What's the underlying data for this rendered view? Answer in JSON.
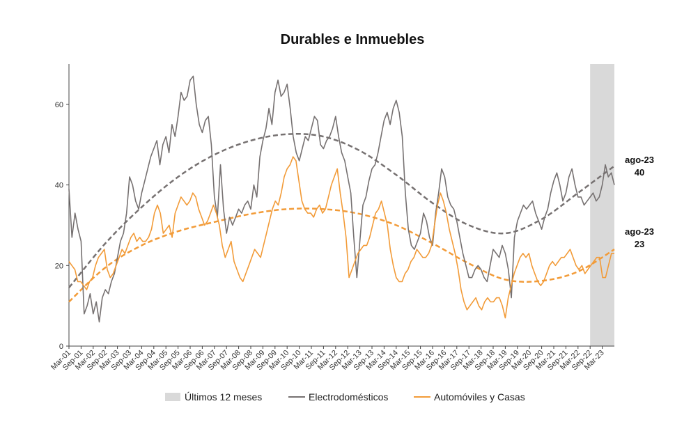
{
  "chart_data": {
    "type": "line",
    "title": "Durables e Inmuebles",
    "xlabel": "",
    "ylabel": "",
    "ylim": [
      0,
      70
    ],
    "yticks": [
      0,
      20,
      40,
      60
    ],
    "x_labels": [
      "Mar-01",
      "Sep-01",
      "Mar-02",
      "Sep-02",
      "Mar-03",
      "Sep-03",
      "Mar-04",
      "Sep-04",
      "Mar-05",
      "Sep-05",
      "Mar-06",
      "Sep-06",
      "Mar-07",
      "Sep-07",
      "Mar-08",
      "Sep-08",
      "Mar-09",
      "Sep-09",
      "Mar-10",
      "Sep-10",
      "Mar-11",
      "Sep-11",
      "Mar-12",
      "Sep-12",
      "Mar-13",
      "Sep-13",
      "Mar-14",
      "Sep-14",
      "Mar-15",
      "Sep-15",
      "Mar-16",
      "Sep-16",
      "Mar-17",
      "Sep-17",
      "Mar-18",
      "Sep-18",
      "Mar-19",
      "Sep-19",
      "Mar-20",
      "Sep-20",
      "Mar-21",
      "Sep-21",
      "Mar-22",
      "Sep-22",
      "Mar-23"
    ],
    "x_start": "Mar-01",
    "x_end": "ago-23",
    "shaded_region": {
      "label": "Últimos 12 meses",
      "from": "Sep-22",
      "to": "ago-23",
      "color": "#d9d9d9"
    },
    "series": [
      {
        "name": "Electrodomésticos",
        "color": "#767171",
        "values": [
          39,
          27,
          33,
          29,
          26,
          8,
          10,
          13,
          8,
          11,
          6,
          12,
          14,
          13,
          16,
          18,
          22,
          26,
          28,
          33,
          42,
          40,
          36,
          34,
          38,
          41,
          44,
          47,
          49,
          51,
          45,
          50,
          52,
          48,
          55,
          52,
          57,
          63,
          61,
          62,
          66,
          67,
          60,
          55,
          53,
          56,
          57,
          50,
          37,
          32,
          45,
          34,
          28,
          32,
          30,
          32,
          34,
          33,
          35,
          36,
          34,
          40,
          37,
          47,
          51,
          54,
          59,
          55,
          63,
          66,
          62,
          63,
          65,
          59,
          52,
          48,
          46,
          49,
          52,
          51,
          54,
          57,
          56,
          50,
          49,
          51,
          52,
          54,
          57,
          52,
          48,
          46,
          42,
          38,
          27,
          17,
          26,
          35,
          37,
          41,
          44,
          45,
          48,
          52,
          56,
          58,
          55,
          59,
          61,
          58,
          52,
          38,
          29,
          25,
          24,
          26,
          28,
          33,
          31,
          27,
          25,
          33,
          38,
          44,
          42,
          37,
          35,
          34,
          31,
          27,
          23,
          20,
          17,
          17,
          19,
          20,
          19,
          17,
          16,
          20,
          24,
          23,
          22,
          25,
          23,
          19,
          12,
          27,
          31,
          33,
          35,
          34,
          35,
          36,
          33,
          31,
          29,
          32,
          34,
          38,
          41,
          43,
          40,
          36,
          38,
          42,
          44,
          40,
          37,
          37,
          35,
          36,
          37,
          38,
          36,
          37,
          40,
          45,
          42,
          43,
          40
        ],
        "trend": {
          "label": "ago-23",
          "value": "40"
        }
      },
      {
        "name": "Automóviles y Casas",
        "color": "#f29b38",
        "values": [
          21,
          20,
          19,
          16,
          16,
          15,
          14,
          16,
          17,
          20,
          22,
          23,
          24,
          19,
          17,
          18,
          20,
          22,
          24,
          23,
          25,
          27,
          28,
          26,
          27,
          26,
          26,
          27,
          29,
          33,
          35,
          33,
          28,
          29,
          30,
          27,
          33,
          35,
          37,
          36,
          35,
          36,
          38,
          37,
          34,
          32,
          30,
          31,
          33,
          35,
          33,
          30,
          25,
          22,
          24,
          26,
          21,
          19,
          17,
          16,
          18,
          20,
          22,
          24,
          23,
          22,
          25,
          28,
          31,
          34,
          36,
          35,
          38,
          42,
          44,
          45,
          47,
          46,
          41,
          36,
          34,
          33,
          33,
          32,
          34,
          35,
          33,
          34,
          37,
          40,
          42,
          44,
          38,
          33,
          27,
          17,
          19,
          21,
          23,
          24,
          25,
          25,
          27,
          30,
          33,
          34,
          36,
          33,
          30,
          24,
          20,
          17,
          16,
          16,
          18,
          19,
          21,
          22,
          24,
          23,
          22,
          22,
          23,
          25,
          30,
          35,
          38,
          36,
          33,
          29,
          26,
          23,
          19,
          14,
          11,
          9,
          10,
          11,
          12,
          10,
          9,
          11,
          12,
          11,
          11,
          12,
          12,
          10,
          7,
          12,
          15,
          18,
          20,
          22,
          23,
          22,
          23,
          20,
          18,
          16,
          15,
          16,
          18,
          20,
          21,
          20,
          21,
          22,
          22,
          23,
          24,
          22,
          20,
          19,
          20,
          18,
          19,
          20,
          21,
          22,
          22,
          17,
          17,
          20,
          23,
          23
        ],
        "trend": {
          "label": "ago-23",
          "value": "23"
        }
      }
    ],
    "trend_lines": [
      {
        "series": "Electrodomésticos",
        "style": "dashed",
        "color": "#767171",
        "points": [
          14.5,
          25.5,
          34.5,
          42,
          47.5,
          51,
          52.6,
          52,
          48.5,
          42.5,
          35.5,
          30,
          28,
          31.5,
          38,
          44.7
        ]
      },
      {
        "series": "Automóviles y Casas",
        "style": "dashed",
        "color": "#f29b38",
        "points": [
          11,
          19.5,
          25,
          28.5,
          30.8,
          32.8,
          34,
          34,
          32.8,
          30,
          25.5,
          20.5,
          16.5,
          16.2,
          18.5,
          24
        ]
      }
    ],
    "legend": [
      "Últimos 12 meses",
      "Electrodomésticos",
      "Automóviles y Casas"
    ],
    "legend_position": "bottom",
    "grid": false
  }
}
